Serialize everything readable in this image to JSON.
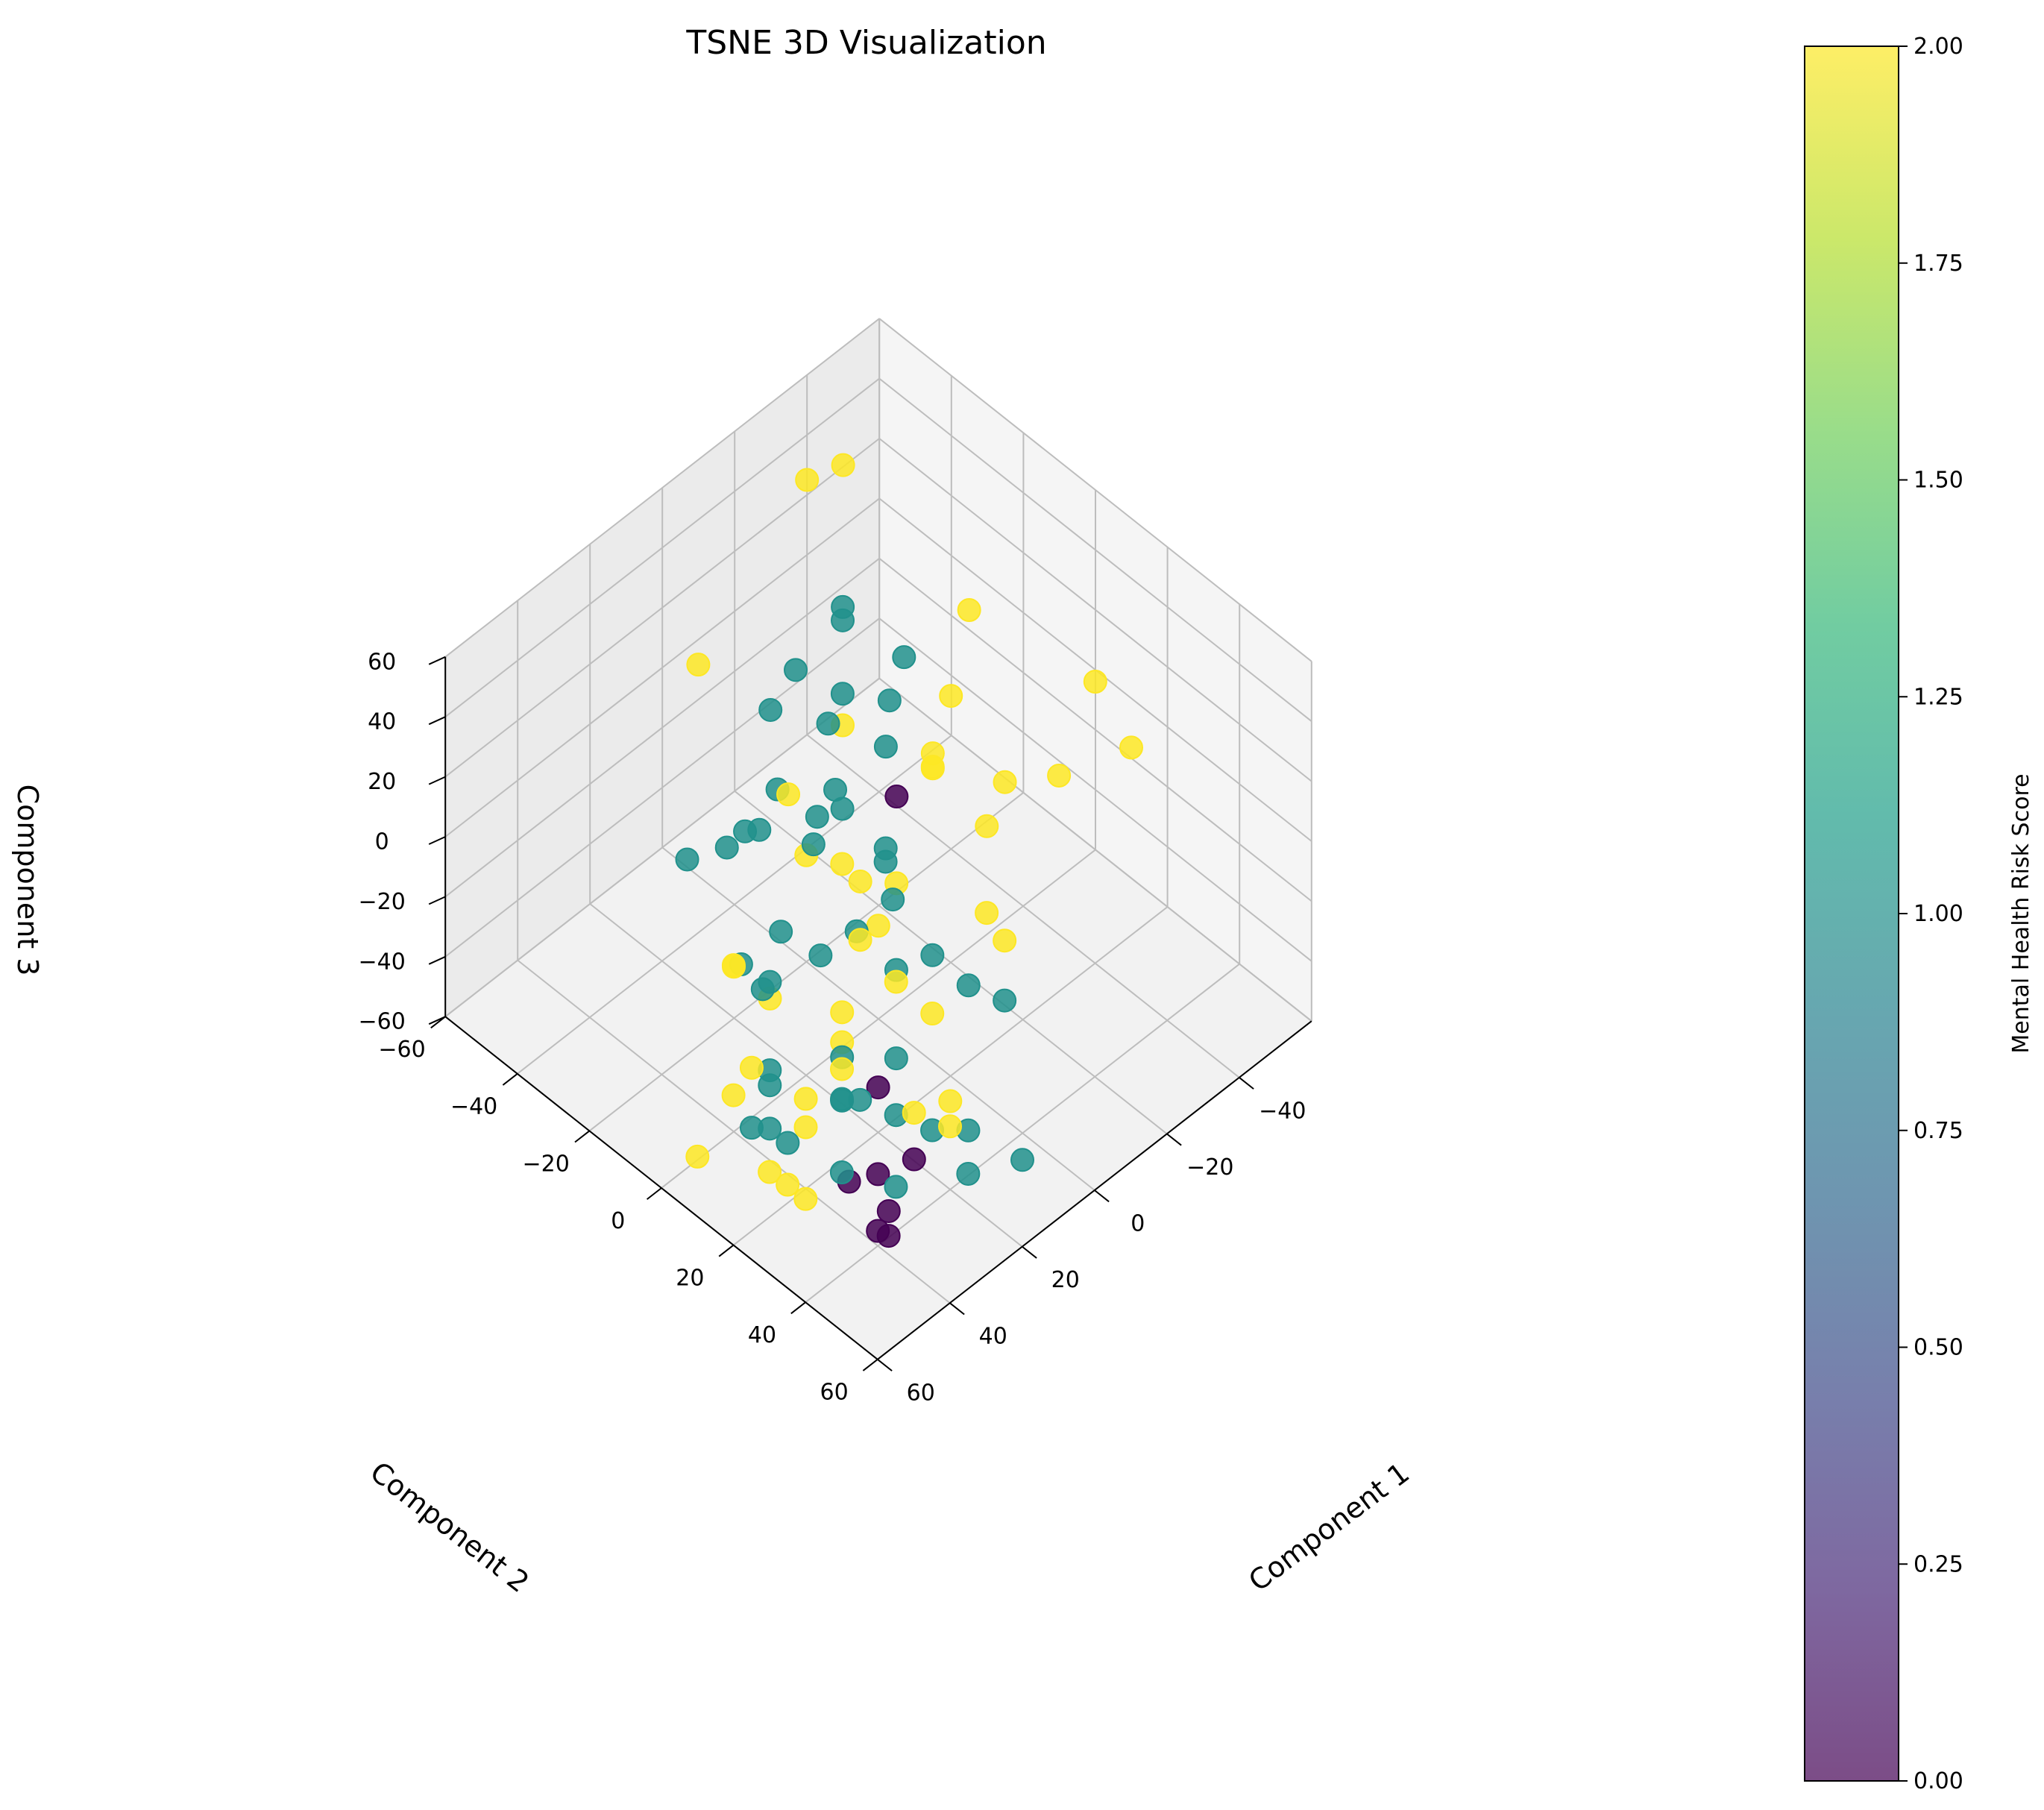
{
  "chart_data": {
    "type": "scatter",
    "title": "TSNE 3D Visualization",
    "xlabel": "Component 1",
    "ylabel": "Component 2",
    "zlabel": "Component 3",
    "xlim": [
      -60,
      60
    ],
    "ylim": [
      -60,
      60
    ],
    "zlim": [
      -60,
      60
    ],
    "x_ticks": [
      "−40",
      "−20",
      "0",
      "20",
      "40",
      "60"
    ],
    "y_ticks": [
      "−60",
      "−40",
      "−20",
      "0",
      "20",
      "40",
      "60"
    ],
    "z_ticks": [
      "−60",
      "−40",
      "−20",
      "0",
      "20",
      "40",
      "60"
    ],
    "grid": true,
    "colormap": "viridis",
    "colorbar": {
      "label": "Mental Health Risk Score",
      "range": [
        0,
        2
      ],
      "ticks": [
        "0.00",
        "0.25",
        "0.50",
        "0.75",
        "1.00",
        "1.25",
        "1.50",
        "1.75",
        "2.00"
      ],
      "colors": [
        "#440154",
        "#482878",
        "#3e4989",
        "#31688e",
        "#26828e",
        "#1f9e89",
        "#35b779",
        "#6ece58",
        "#b5de2b",
        "#fde725"
      ]
    },
    "series": [
      {
        "score": 2,
        "color": "#fde725",
        "x": [
          -40,
          -45,
          5,
          10,
          -50,
          -45,
          -30,
          -25,
          -15,
          -20,
          -5,
          -10,
          -20,
          -30,
          -45,
          -15,
          -20,
          0,
          5,
          20,
          15,
          25,
          30,
          40,
          55,
          15,
          10,
          25,
          10,
          30,
          35,
          50,
          45,
          60,
          30,
          10,
          20,
          40,
          45,
          60,
          50,
          55
        ],
        "y": [
          -60,
          -55,
          -45,
          -15,
          10,
          25,
          20,
          10,
          0,
          10,
          30,
          20,
          -5,
          -10,
          -20,
          -25,
          -5,
          5,
          -15,
          25,
          10,
          15,
          0,
          20,
          30,
          35,
          25,
          15,
          10,
          40,
          25,
          15,
          5,
          20,
          50,
          5,
          10,
          0,
          25,
          10,
          20,
          35
        ],
        "z": [
          25,
          30,
          20,
          10,
          15,
          12,
          12,
          5,
          10,
          -5,
          -10,
          -15,
          5,
          10,
          15,
          0,
          0,
          -10,
          -15,
          -5,
          -10,
          -20,
          -25,
          -30,
          -35,
          -40,
          -25,
          -30,
          -10,
          -25,
          -20,
          -15,
          5,
          -10,
          -20,
          0,
          20,
          -5,
          -30,
          -40,
          -45,
          -35
        ]
      },
      {
        "score": 1,
        "color": "#21918c",
        "x": [
          -20,
          -15,
          -10,
          -5,
          -8,
          -18,
          -25,
          -12,
          0,
          5,
          10,
          2,
          -5,
          8,
          12,
          15,
          20,
          25,
          -2,
          3,
          6,
          14,
          18,
          22,
          28,
          32,
          35,
          40,
          10,
          5,
          0,
          -5,
          15,
          25,
          30,
          35,
          40,
          45,
          20,
          25,
          30,
          35,
          40,
          45,
          50,
          20,
          15,
          10
        ],
        "y": [
          -30,
          -25,
          -20,
          -28,
          -22,
          -15,
          -18,
          -10,
          -12,
          -5,
          -8,
          -15,
          -35,
          -20,
          -25,
          -18,
          -22,
          -28,
          0,
          5,
          10,
          8,
          2,
          -5,
          -10,
          0,
          5,
          10,
          15,
          20,
          25,
          30,
          20,
          15,
          20,
          25,
          10,
          15,
          35,
          30,
          25,
          40,
          30,
          20,
          15,
          45,
          40,
          50
        ],
        "z": [
          30,
          35,
          20,
          25,
          10,
          15,
          20,
          10,
          5,
          10,
          0,
          -5,
          5,
          5,
          -10,
          0,
          -5,
          -10,
          -5,
          0,
          -5,
          -10,
          -20,
          -15,
          -25,
          -20,
          -10,
          -30,
          -20,
          -15,
          -25,
          -30,
          -40,
          -35,
          -40,
          -30,
          -35,
          -40,
          -45,
          -40,
          -35,
          -45,
          -45,
          -40,
          -35,
          -50,
          -45,
          -50
        ]
      },
      {
        "score": 0,
        "color": "#440154",
        "x": [
          -10,
          20,
          25,
          30,
          35,
          40,
          38,
          42
        ],
        "y": [
          -5,
          20,
          35,
          30,
          38,
          40,
          30,
          45
        ],
        "z": [
          0,
          -45,
          -50,
          -55,
          -55,
          -55,
          -50,
          -50
        ]
      }
    ]
  }
}
